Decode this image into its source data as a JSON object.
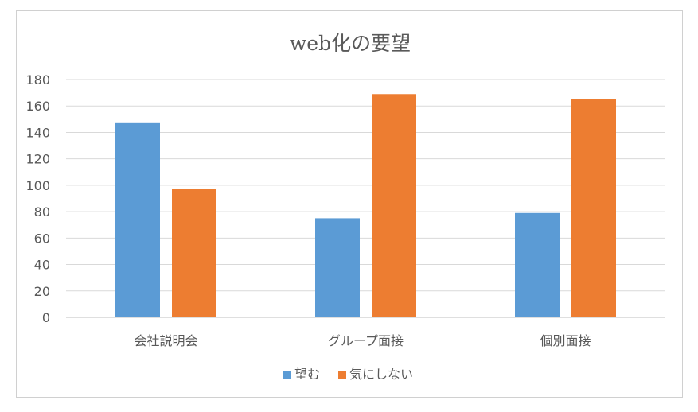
{
  "chart_data": {
    "type": "bar",
    "title": "web化の要望",
    "categories": [
      "会社説明会",
      "グループ面接",
      "個別面接"
    ],
    "series": [
      {
        "name": "望む",
        "values": [
          147,
          75,
          79
        ],
        "color": "#5b9bd5"
      },
      {
        "name": "気にしない",
        "values": [
          97,
          169,
          165
        ],
        "color": "#ed7d31"
      }
    ],
    "ylim": [
      0,
      180
    ],
    "yticks": [
      0,
      20,
      40,
      60,
      80,
      100,
      120,
      140,
      160,
      180
    ],
    "grid": true,
    "legend_position": "bottom"
  }
}
